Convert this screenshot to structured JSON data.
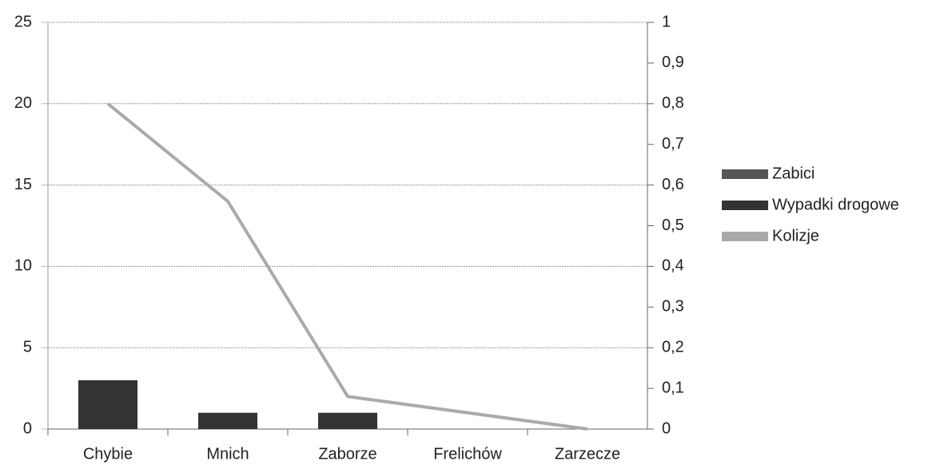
{
  "chart_data": {
    "type": "bar",
    "categories": [
      "Chybie",
      "Mnich",
      "Zaborze",
      "Frelichów",
      "Zarzecze"
    ],
    "series": [
      {
        "name": "Zabici",
        "color": "#555555",
        "type": "bar",
        "values": [
          0,
          0,
          0,
          0,
          0
        ]
      },
      {
        "name": "Wypadki drogowe",
        "color": "#333333",
        "type": "bar",
        "values": [
          3,
          1,
          1,
          0,
          0
        ]
      },
      {
        "name": "Kolizje",
        "color": "#aaaaaa",
        "type": "line",
        "axis": "y2",
        "values": [
          0.8,
          0.56,
          0.08,
          0.04,
          0
        ]
      }
    ],
    "ylim": [
      0,
      25
    ],
    "yticks": [
      0,
      5,
      10,
      15,
      20,
      25
    ],
    "y2lim": [
      0,
      1
    ],
    "y2ticks": [
      0,
      {
        "value": 0.1,
        "label": "0,1"
      },
      {
        "value": 0.2,
        "label": "0,2"
      },
      {
        "value": 0.3,
        "label": "0,3"
      },
      {
        "value": 0.4,
        "label": "0,4"
      },
      {
        "value": 0.5,
        "label": "0,5"
      },
      {
        "value": 0.6,
        "label": "0,6"
      },
      {
        "value": 0.7,
        "label": "0,7"
      },
      {
        "value": 0.8,
        "label": "0,8"
      },
      {
        "value": 0.9,
        "label": "0,9"
      },
      1
    ],
    "grid": true,
    "legend": "right"
  }
}
